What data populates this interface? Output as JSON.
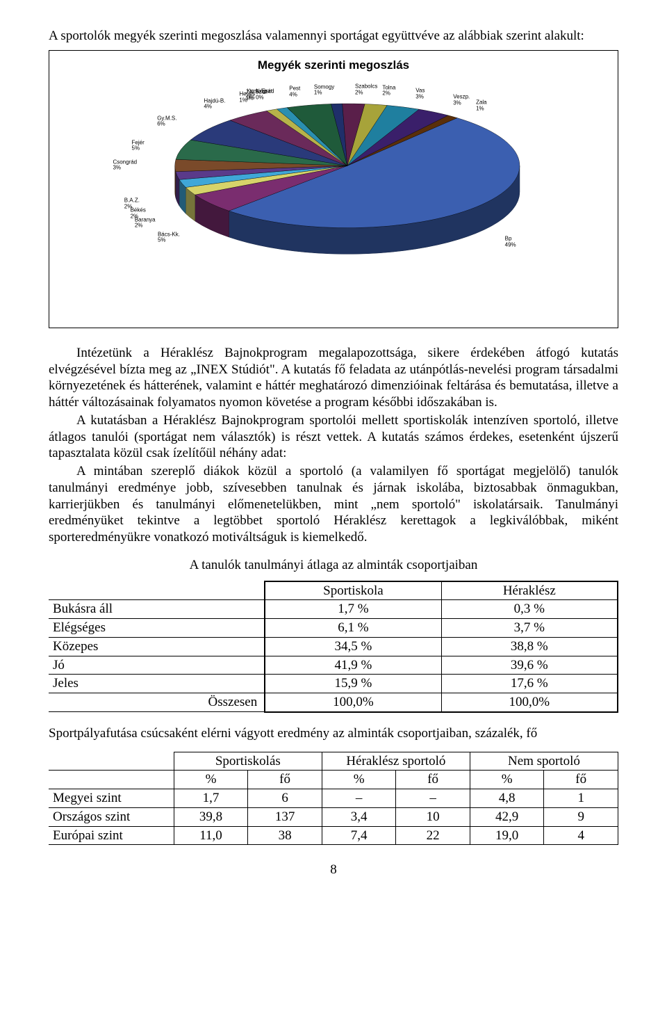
{
  "intro": "A sportolók megyék szerinti megoszlása valamennyi sportágat együttvéve az alábbiak szerint alakult:",
  "chart": {
    "type": "pie-3d",
    "title": "Megyék szerinti megoszlás",
    "title_fontsize": 17,
    "background_color": "#ffffff",
    "slices": [
      {
        "label": "Bp",
        "pct": "49%",
        "color": "#3b5fb0"
      },
      {
        "label": "Bács-Kk.",
        "pct": "5%",
        "color": "#7a2d6f"
      },
      {
        "label": "Baranya",
        "pct": "2%",
        "color": "#d7d36a"
      },
      {
        "label": "Békés",
        "pct": "2%",
        "color": "#3fa7d8"
      },
      {
        "label": "B.A.Z.",
        "pct": "2%",
        "color": "#5a3a8a"
      },
      {
        "label": "Csongrád",
        "pct": "3%",
        "color": "#7a4a2a"
      },
      {
        "label": "Fejér",
        "pct": "5%",
        "color": "#2a6a4a"
      },
      {
        "label": "Gy.M.S.",
        "pct": "6%",
        "color": "#2a3a7a"
      },
      {
        "label": "Hajdú-B.",
        "pct": "4%",
        "color": "#6a2a5a"
      },
      {
        "label": "Heves",
        "pct": "1%",
        "color": "#b7b34a"
      },
      {
        "label": "J.N.Szol.",
        "pct": "1%",
        "color": "#2a8fb0"
      },
      {
        "label": "Kom.-Eszt.",
        "pct": "0%",
        "color": "#4a2a7a"
      },
      {
        "label": "Nógrád",
        "pct": "0%",
        "color": "#6a3a1a"
      },
      {
        "label": "Pest",
        "pct": "4%",
        "color": "#1f5a3a"
      },
      {
        "label": "Somogy",
        "pct": "1%",
        "color": "#1f2f6a"
      },
      {
        "label": "Szabolcs",
        "pct": "2%",
        "color": "#5a1f4a"
      },
      {
        "label": "Tolna",
        "pct": "2%",
        "color": "#a7a33a"
      },
      {
        "label": "Vas",
        "pct": "3%",
        "color": "#1f7f9f"
      },
      {
        "label": "Veszp.",
        "pct": "3%",
        "color": "#3a1f6a"
      },
      {
        "label": "Zala",
        "pct": "1%",
        "color": "#5a2f0a"
      }
    ],
    "label_fontsize": 8,
    "big_slice_color": "#3b5fb0",
    "edge_color": "#1f2f5a"
  },
  "body": {
    "p1": "Intézetünk a Héraklész Bajnokprogram megalapozottsága, sikere érdekében átfogó kutatás elvégzésével bízta meg az „INEX Stúdiót\". A kutatás fő feladata az utánpótlás-nevelési program társadalmi környezetének és hátterének, valamint e háttér meghatározó dimenzióinak feltárása és bemutatása, illetve a háttér változásainak folyamatos nyomon követése a program későbbi időszakában is.",
    "p2": "A kutatásban a Héraklész Bajnokprogram sportolói mellett sportiskolák intenzíven sportoló, illetve átlagos tanulói (sportágat nem választók) is részt vettek. A kutatás számos érdekes, esetenként újszerű tapasztalata közül csak ízelítőül néhány adat:",
    "p3": "A mintában szereplő diákok közül a sportoló (a valamilyen fő sportágat megjelölő) tanulók tanulmányi eredménye jobb, szívesebben tanulnak és járnak iskolába, biztosabbak önmagukban, karrierjükben és tanulmányi előmenetelükben, mint „nem sportoló\" iskolatársaik. Tanulmányi eredményüket tekintve a legtöbbet sportoló Héraklész kerettagok a legkiválóbbak, miként sporteredményükre vonatkozó motiváltságuk is kiemelkedő."
  },
  "table1": {
    "caption": "A tanulók tanulmányi átlaga az alminták csoportjaiban",
    "columns": [
      "",
      "Sportiskola",
      "Héraklész"
    ],
    "rows": [
      [
        "Bukásra áll",
        "1,7 %",
        "0,3 %"
      ],
      [
        "Elégséges",
        "6,1 %",
        "3,7 %"
      ],
      [
        "Közepes",
        "34,5 %",
        "38,8 %"
      ],
      [
        "Jó",
        "41,9 %",
        "39,6 %"
      ],
      [
        "Jeles",
        "15,9 %",
        "17,6 %"
      ]
    ],
    "total_row": [
      "Összesen",
      "100,0%",
      "100,0%"
    ]
  },
  "between_text": "Sportpályafutása csúcsaként elérni vágyott eredmény az alminták csoportjaiban, százalék, fő",
  "table2": {
    "groups": [
      "Sportiskolás",
      "Héraklész sportoló",
      "Nem sportoló"
    ],
    "sub": [
      "%",
      "fő"
    ],
    "rows": [
      [
        "Megyei szint",
        "1,7",
        "6",
        "–",
        "–",
        "4,8",
        "1"
      ],
      [
        "Országos szint",
        "39,8",
        "137",
        "3,4",
        "10",
        "42,9",
        "9"
      ],
      [
        "Európai szint",
        "11,0",
        "38",
        "7,4",
        "22",
        "19,0",
        "4"
      ]
    ]
  },
  "page_number": "8"
}
